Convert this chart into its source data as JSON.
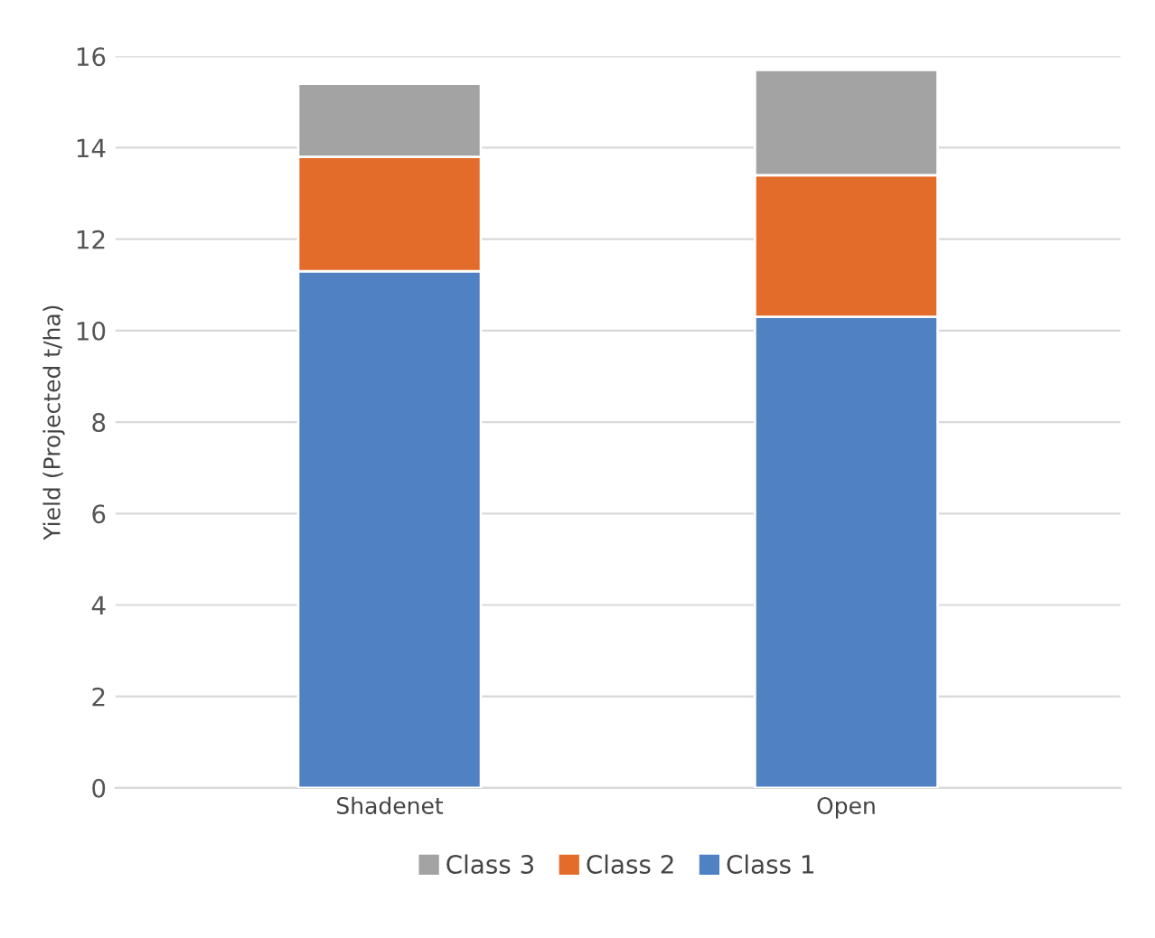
{
  "chart_data": {
    "type": "bar",
    "stacked": true,
    "ylabel": "Yield (Projected t/ha)",
    "categories": [
      "Shadenet",
      "Open"
    ],
    "series": [
      {
        "name": "Class 1",
        "color": "#4f81c3",
        "values": [
          11.3,
          10.3
        ]
      },
      {
        "name": "Class 2",
        "color": "#e36c2b",
        "values": [
          2.5,
          3.1
        ]
      },
      {
        "name": "Class 3",
        "color": "#a3a3a3",
        "values": [
          1.6,
          2.3
        ]
      }
    ],
    "ylim": [
      0,
      16
    ],
    "yticks": [
      0,
      2,
      4,
      6,
      8,
      10,
      12,
      14,
      16
    ],
    "grid": "y",
    "legend": "bottom"
  }
}
